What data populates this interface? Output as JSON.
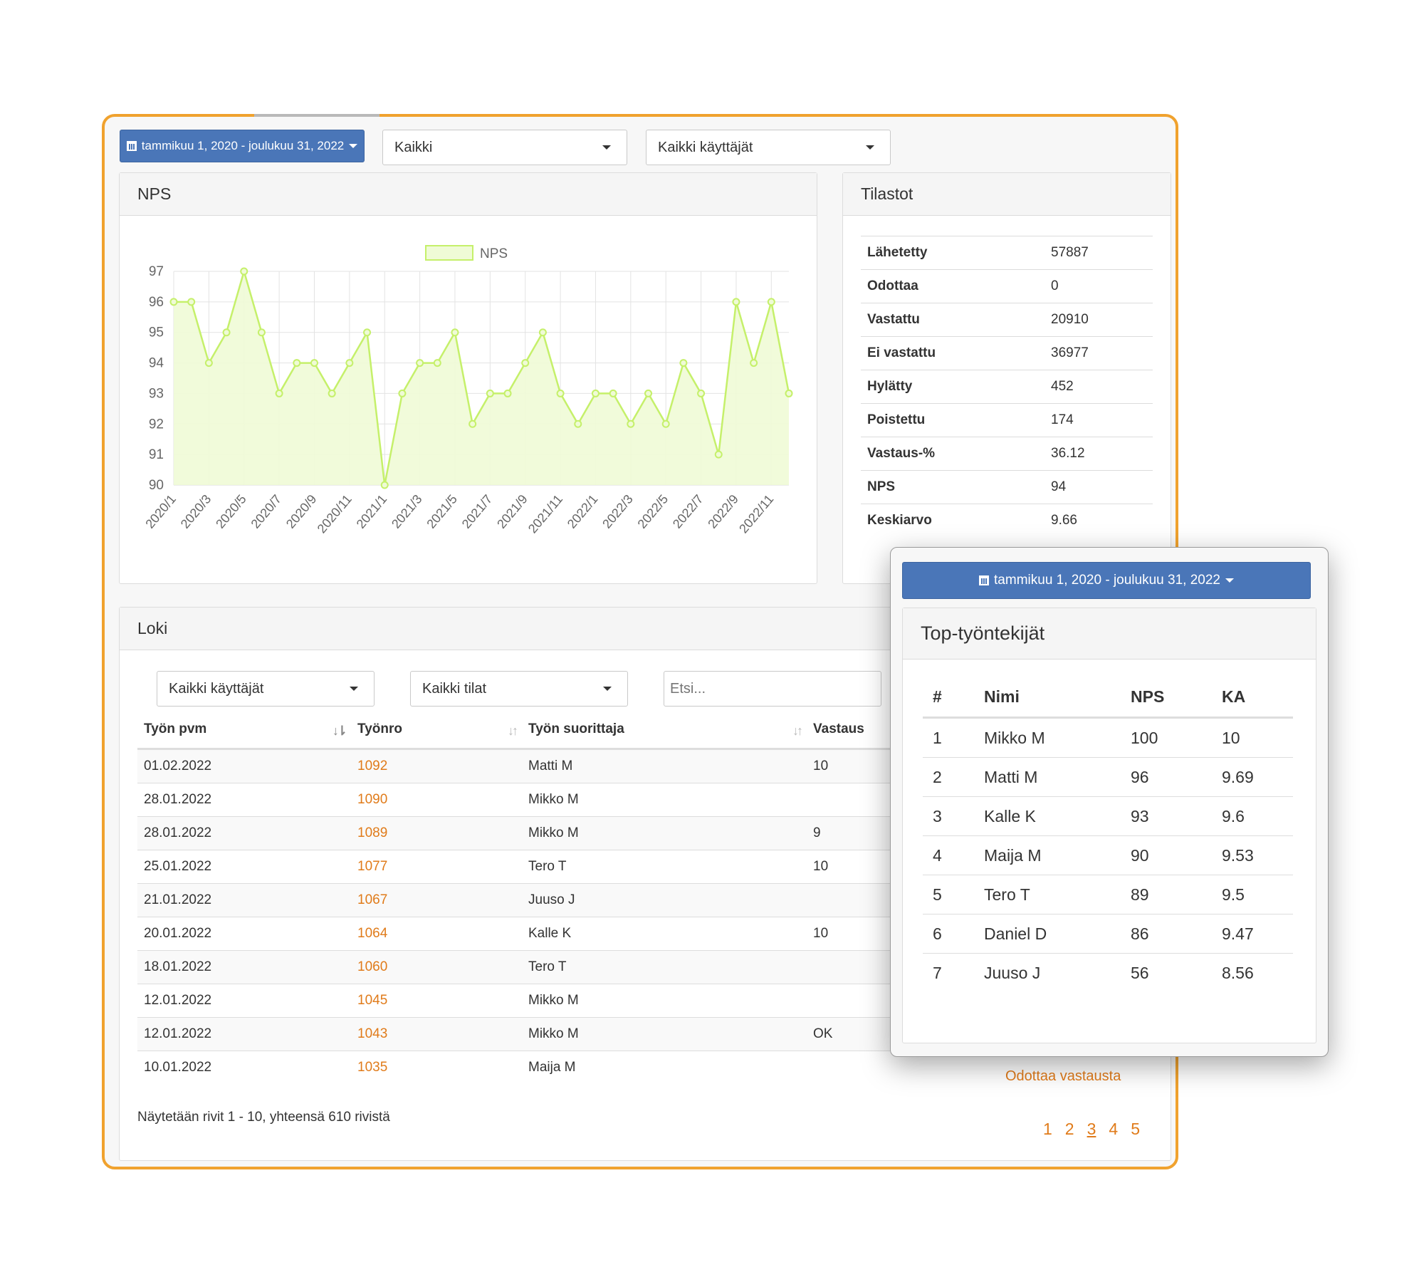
{
  "filters": {
    "date_range": "tammikuu 1, 2020 - joulukuu 31, 2022",
    "type_select": "Kaikki",
    "user_select": "Kaikki käyttäjät"
  },
  "nps_panel": {
    "title": "NPS"
  },
  "chart_data": {
    "type": "area",
    "legend": [
      "NPS"
    ],
    "ylim": [
      90,
      97
    ],
    "yticks": [
      90,
      91,
      92,
      93,
      94,
      95,
      96,
      97
    ],
    "x": [
      "2020/1",
      "2020/2",
      "2020/3",
      "2020/4",
      "2020/5",
      "2020/6",
      "2020/7",
      "2020/8",
      "2020/9",
      "2020/10",
      "2020/11",
      "2020/12",
      "2021/1",
      "2021/2",
      "2021/3",
      "2021/4",
      "2021/5",
      "2021/6",
      "2021/7",
      "2021/8",
      "2021/9",
      "2021/10",
      "2021/11",
      "2021/12",
      "2022/1",
      "2022/2",
      "2022/3",
      "2022/4",
      "2022/5",
      "2022/6",
      "2022/7",
      "2022/8",
      "2022/9",
      "2022/10",
      "2022/11",
      "2022/12"
    ],
    "xtick_labels": [
      "2020/1",
      "2020/3",
      "2020/5",
      "2020/7",
      "2020/9",
      "2020/11",
      "2021/1",
      "2021/3",
      "2021/5",
      "2021/7",
      "2021/9",
      "2021/11",
      "2022/1",
      "2022/3",
      "2022/5",
      "2022/7",
      "2022/9",
      "2022/11"
    ],
    "series": [
      {
        "name": "NPS",
        "values": [
          96,
          96,
          94,
          95,
          97,
          95,
          93,
          94,
          94,
          93,
          94,
          95,
          90,
          93,
          94,
          94,
          95,
          92,
          93,
          93,
          94,
          95,
          93,
          92,
          93,
          93,
          92,
          93,
          92,
          94,
          93,
          91,
          96,
          94,
          96,
          93
        ]
      }
    ],
    "grid": true,
    "legend_position": "top-center",
    "colors": {
      "line": "#c5f06a",
      "fill": "#effbd6"
    }
  },
  "stats_panel": {
    "title": "Tilastot",
    "rows": [
      {
        "label": "Lähetetty",
        "value": "57887"
      },
      {
        "label": "Odottaa",
        "value": "0"
      },
      {
        "label": "Vastattu",
        "value": "20910"
      },
      {
        "label": "Ei vastattu",
        "value": "36977"
      },
      {
        "label": "Hylätty",
        "value": "452"
      },
      {
        "label": "Poistettu",
        "value": "174"
      },
      {
        "label": "Vastaus-%",
        "value": "36.12"
      },
      {
        "label": "NPS",
        "value": "94"
      },
      {
        "label": "Keskiarvo",
        "value": "9.66"
      }
    ]
  },
  "log_panel": {
    "title": "Loki",
    "user_filter": "Kaikki käyttäjät",
    "status_filter": "Kaikki tilat",
    "search_placeholder": "Etsi...",
    "headers": [
      "Työn pvm",
      "Työnro",
      "Työn suorittaja",
      "Vastaus"
    ],
    "rows": [
      {
        "date": "01.02.2022",
        "job": "1092",
        "worker": "Matti M",
        "answer": "10"
      },
      {
        "date": "28.01.2022",
        "job": "1090",
        "worker": "Mikko M",
        "answer": ""
      },
      {
        "date": "28.01.2022",
        "job": "1089",
        "worker": "Mikko M",
        "answer": "9"
      },
      {
        "date": "25.01.2022",
        "job": "1077",
        "worker": "Tero T",
        "answer": "10"
      },
      {
        "date": "21.01.2022",
        "job": "1067",
        "worker": "Juuso J",
        "answer": ""
      },
      {
        "date": "20.01.2022",
        "job": "1064",
        "worker": "Kalle K",
        "answer": "10"
      },
      {
        "date": "18.01.2022",
        "job": "1060",
        "worker": "Tero T",
        "answer": ""
      },
      {
        "date": "12.01.2022",
        "job": "1045",
        "worker": "Mikko M",
        "answer": ""
      },
      {
        "date": "12.01.2022",
        "job": "1043",
        "worker": "Mikko M",
        "answer": "OK"
      },
      {
        "date": "10.01.2022",
        "job": "1035",
        "worker": "Maija M",
        "answer": ""
      }
    ],
    "last_row_status": "Odottaa vastausta",
    "summary": "Näytetään rivit 1 - 10, yhteensä 610 rivistä",
    "pages": [
      "1",
      "2",
      "3",
      "4",
      "5"
    ],
    "current_page": "3"
  },
  "popup": {
    "date_range": "tammikuu 1, 2020 - joulukuu 31, 2022",
    "title": "Top-työntekijät",
    "headers": [
      "#",
      "Nimi",
      "NPS",
      "KA"
    ],
    "rows": [
      {
        "rank": "1",
        "name": "Mikko M",
        "nps": "100",
        "ka": "10"
      },
      {
        "rank": "2",
        "name": "Matti M",
        "nps": "96",
        "ka": "9.69"
      },
      {
        "rank": "3",
        "name": "Kalle K",
        "nps": "93",
        "ka": "9.6"
      },
      {
        "rank": "4",
        "name": "Maija M",
        "nps": "90",
        "ka": "9.53"
      },
      {
        "rank": "5",
        "name": "Tero T",
        "nps": "89",
        "ka": "9.5"
      },
      {
        "rank": "6",
        "name": "Daniel D",
        "nps": "86",
        "ka": "9.47"
      },
      {
        "rank": "7",
        "name": "Juuso J",
        "nps": "56",
        "ka": "8.56"
      }
    ]
  }
}
